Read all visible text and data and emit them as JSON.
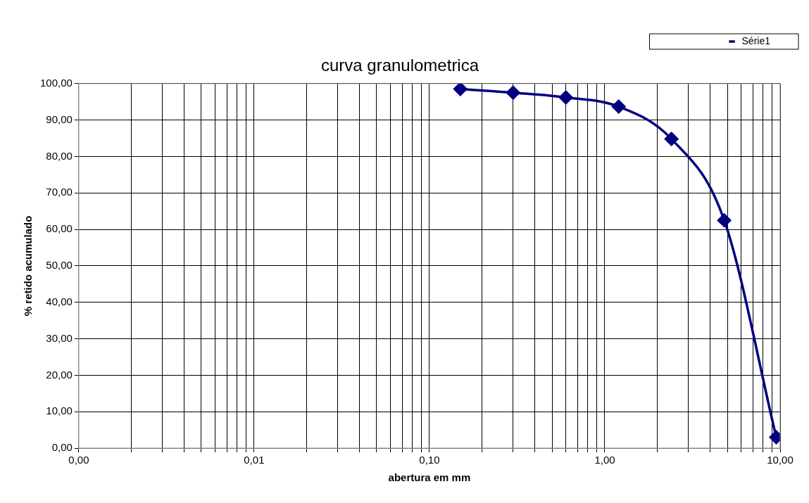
{
  "chart_data": {
    "type": "line",
    "title": "curva granulometrica",
    "xlabel": "abertura em mm",
    "ylabel": "% retido acumulado",
    "log": "x",
    "xlim": [
      0.001,
      10
    ],
    "xticks": [
      {
        "value": 0.001,
        "label": "0,00"
      },
      {
        "value": 0.002,
        "label": null
      },
      {
        "value": 0.003,
        "label": null
      },
      {
        "value": 0.004,
        "label": null
      },
      {
        "value": 0.005,
        "label": null
      },
      {
        "value": 0.006,
        "label": null
      },
      {
        "value": 0.007,
        "label": null
      },
      {
        "value": 0.008,
        "label": null
      },
      {
        "value": 0.009,
        "label": null
      },
      {
        "value": 0.01,
        "label": "0,01"
      },
      {
        "value": 0.02,
        "label": null
      },
      {
        "value": 0.03,
        "label": null
      },
      {
        "value": 0.04,
        "label": null
      },
      {
        "value": 0.05,
        "label": null
      },
      {
        "value": 0.06,
        "label": null
      },
      {
        "value": 0.07,
        "label": null
      },
      {
        "value": 0.08,
        "label": null
      },
      {
        "value": 0.09,
        "label": null
      },
      {
        "value": 0.1,
        "label": "0,10"
      },
      {
        "value": 0.2,
        "label": null
      },
      {
        "value": 0.3,
        "label": null
      },
      {
        "value": 0.4,
        "label": null
      },
      {
        "value": 0.5,
        "label": null
      },
      {
        "value": 0.6,
        "label": null
      },
      {
        "value": 0.7,
        "label": null
      },
      {
        "value": 0.8,
        "label": null
      },
      {
        "value": 0.9,
        "label": null
      },
      {
        "value": 1,
        "label": "1,00"
      },
      {
        "value": 2,
        "label": null
      },
      {
        "value": 3,
        "label": null
      },
      {
        "value": 4,
        "label": null
      },
      {
        "value": 5,
        "label": null
      },
      {
        "value": 6,
        "label": null
      },
      {
        "value": 7,
        "label": null
      },
      {
        "value": 8,
        "label": null
      },
      {
        "value": 9,
        "label": null
      },
      {
        "value": 10,
        "label": "10,00"
      }
    ],
    "ylim": [
      0,
      100
    ],
    "yticks": [
      {
        "value": 0,
        "label": "0,00"
      },
      {
        "value": 10,
        "label": "10,00"
      },
      {
        "value": 20,
        "label": "20,00"
      },
      {
        "value": 30,
        "label": "30,00"
      },
      {
        "value": 40,
        "label": "40,00"
      },
      {
        "value": 50,
        "label": "50,00"
      },
      {
        "value": 60,
        "label": "60,00"
      },
      {
        "value": 70,
        "label": "70,00"
      },
      {
        "value": 80,
        "label": "80,00"
      },
      {
        "value": 90,
        "label": "90,00"
      },
      {
        "value": 100,
        "label": "100,00"
      }
    ],
    "x": [
      0.15,
      0.3,
      0.6,
      1.2,
      2.4,
      4.8,
      9.5
    ],
    "series": [
      {
        "name": "Série1",
        "color": "#000080",
        "values": [
          98.5,
          97.5,
          96.2,
          93.7,
          84.8,
          62.5,
          3
        ]
      }
    ],
    "grid": true,
    "legend": "top right",
    "marker": "diamond",
    "line_style": "solid"
  }
}
